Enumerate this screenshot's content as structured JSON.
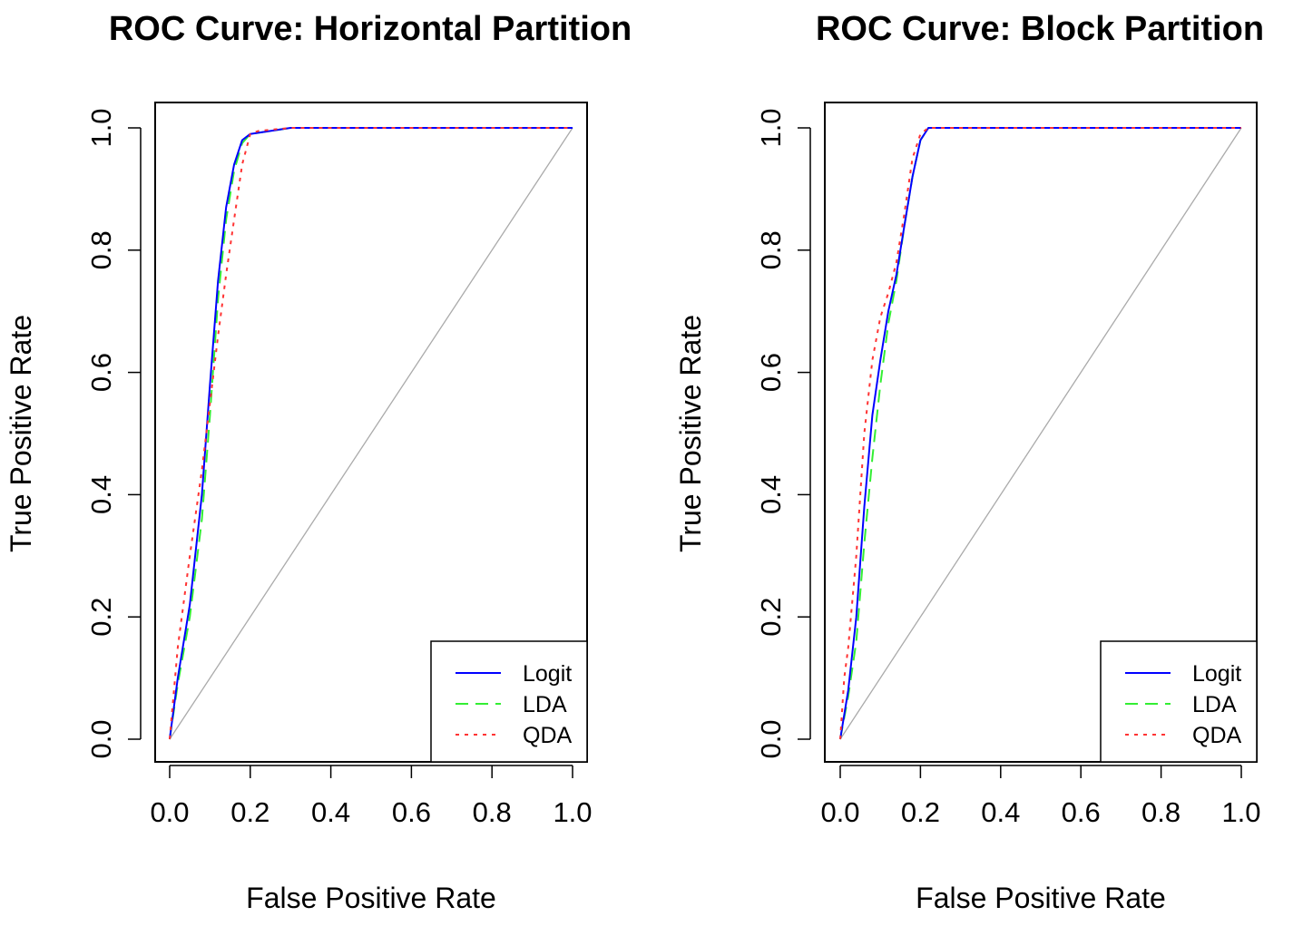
{
  "colors": {
    "logit": "#0000ff",
    "lda": "#33ee33",
    "qda": "#ff3333",
    "diagonal": "#aaaaaa",
    "frame": "#000000"
  },
  "chart_data": [
    {
      "type": "line",
      "title": "ROC Curve: Horizontal Partition",
      "xlabel": "False Positive Rate",
      "ylabel": "True Positive Rate",
      "xlim": [
        0,
        1
      ],
      "ylim": [
        0,
        1
      ],
      "xticks": [
        "0.0",
        "0.2",
        "0.4",
        "0.6",
        "0.8",
        "1.0"
      ],
      "yticks": [
        "0.0",
        "0.2",
        "0.4",
        "0.6",
        "0.8",
        "1.0"
      ],
      "grid": false,
      "legend_position": "bottom-right",
      "series": [
        {
          "name": "Logit",
          "color": "#0000ff",
          "dash": "solid",
          "x": [
            0,
            0.02,
            0.05,
            0.08,
            0.1,
            0.12,
            0.14,
            0.16,
            0.18,
            0.2,
            0.25,
            0.3,
            1.0
          ],
          "y": [
            0,
            0.1,
            0.22,
            0.4,
            0.58,
            0.75,
            0.87,
            0.94,
            0.98,
            0.99,
            0.995,
            1.0,
            1.0
          ]
        },
        {
          "name": "LDA",
          "color": "#33ee33",
          "dash": "dashed",
          "x": [
            0,
            0.02,
            0.05,
            0.08,
            0.1,
            0.12,
            0.14,
            0.16,
            0.18,
            0.2,
            0.25,
            0.3,
            1.0
          ],
          "y": [
            0,
            0.09,
            0.2,
            0.36,
            0.53,
            0.72,
            0.85,
            0.93,
            0.975,
            0.99,
            0.995,
            1.0,
            1.0
          ]
        },
        {
          "name": "QDA",
          "color": "#ff3333",
          "dash": "dotted",
          "x": [
            0,
            0.02,
            0.05,
            0.08,
            0.1,
            0.12,
            0.14,
            0.16,
            0.18,
            0.2,
            0.22,
            0.3,
            1.0
          ],
          "y": [
            0,
            0.15,
            0.3,
            0.44,
            0.55,
            0.66,
            0.76,
            0.85,
            0.94,
            0.99,
            0.995,
            1.0,
            1.0
          ]
        },
        {
          "name": "",
          "color": "#aaaaaa",
          "dash": "solid",
          "x": [
            0,
            1
          ],
          "y": [
            0,
            1
          ]
        }
      ]
    },
    {
      "type": "line",
      "title": "ROC Curve: Block Partition",
      "xlabel": "False Positive Rate",
      "ylabel": "True Positive Rate",
      "xlim": [
        0,
        1
      ],
      "ylim": [
        0,
        1
      ],
      "xticks": [
        "0.0",
        "0.2",
        "0.4",
        "0.6",
        "0.8",
        "1.0"
      ],
      "yticks": [
        "0.0",
        "0.2",
        "0.4",
        "0.6",
        "0.8",
        "1.0"
      ],
      "grid": false,
      "legend_position": "bottom-right",
      "series": [
        {
          "name": "Logit",
          "color": "#0000ff",
          "dash": "solid",
          "x": [
            0,
            0.02,
            0.04,
            0.06,
            0.08,
            0.1,
            0.12,
            0.14,
            0.16,
            0.18,
            0.2,
            0.22,
            0.25,
            1.0
          ],
          "y": [
            0,
            0.08,
            0.2,
            0.38,
            0.53,
            0.62,
            0.7,
            0.76,
            0.84,
            0.92,
            0.98,
            1.0,
            1.0,
            1.0
          ]
        },
        {
          "name": "LDA",
          "color": "#33ee33",
          "dash": "dashed",
          "x": [
            0,
            0.02,
            0.04,
            0.06,
            0.08,
            0.1,
            0.12,
            0.14,
            0.16,
            0.18,
            0.2,
            0.22,
            0.25,
            1.0
          ],
          "y": [
            0,
            0.07,
            0.16,
            0.32,
            0.46,
            0.58,
            0.68,
            0.75,
            0.84,
            0.92,
            0.98,
            1.0,
            1.0,
            1.0
          ]
        },
        {
          "name": "QDA",
          "color": "#ff3333",
          "dash": "dotted",
          "x": [
            0,
            0.01,
            0.02,
            0.04,
            0.06,
            0.08,
            0.1,
            0.12,
            0.14,
            0.16,
            0.18,
            0.2,
            0.22,
            1.0
          ],
          "y": [
            0,
            0.1,
            0.15,
            0.3,
            0.5,
            0.62,
            0.69,
            0.73,
            0.78,
            0.86,
            0.95,
            0.99,
            1.0,
            1.0
          ]
        },
        {
          "name": "",
          "color": "#aaaaaa",
          "dash": "solid",
          "x": [
            0,
            1
          ],
          "y": [
            0,
            1
          ]
        }
      ]
    }
  ]
}
